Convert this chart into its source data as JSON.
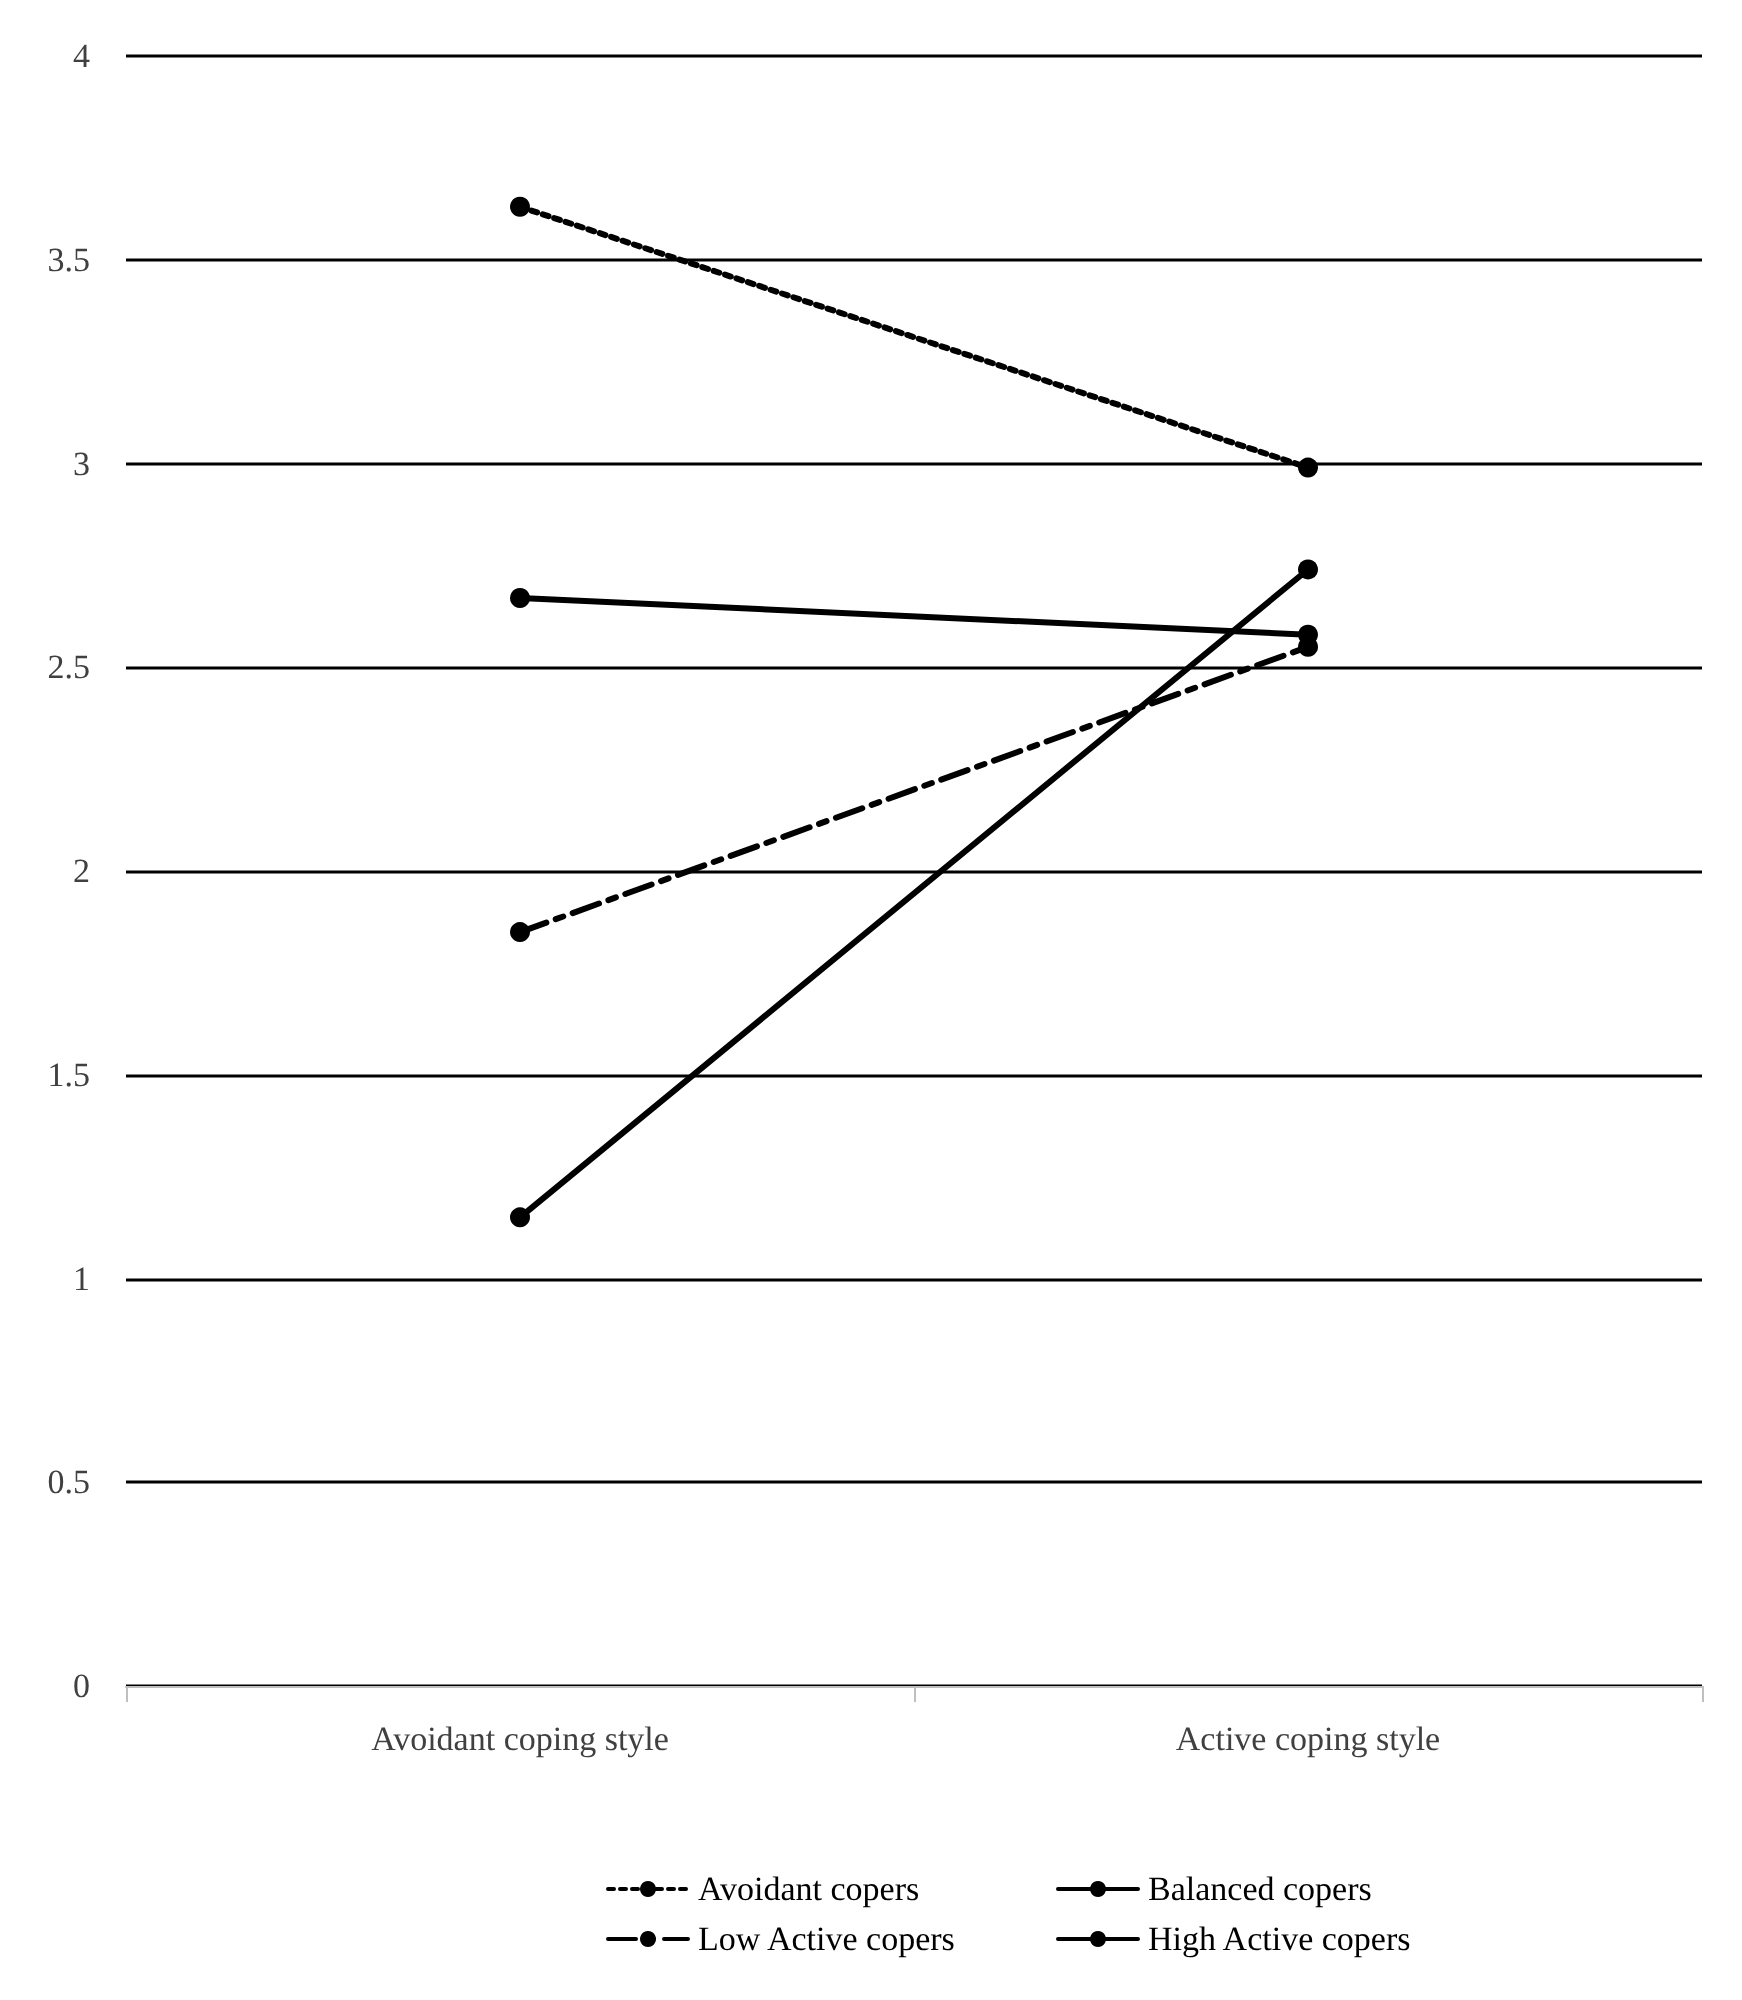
{
  "chart_data": {
    "type": "line",
    "categories": [
      "Avoidant coping style",
      "Active coping style"
    ],
    "series": [
      {
        "name": "Avoidant copers",
        "color": "#000000",
        "values": [
          3.63,
          2.99
        ],
        "line_style": "dotted"
      },
      {
        "name": "Balanced copers",
        "color": "#000000",
        "values": [
          2.67,
          2.58
        ],
        "line_style": "solid"
      },
      {
        "name": "Low Active copers",
        "color": "#000000",
        "values": [
          1.85,
          2.55
        ],
        "line_style": "dashed"
      },
      {
        "name": "High Active copers",
        "color": "#000000",
        "values": [
          1.15,
          2.74
        ],
        "line_style": "solid"
      }
    ],
    "ylim": [
      0,
      4
    ],
    "yticks": [
      0,
      0.5,
      1,
      1.5,
      2,
      2.5,
      3,
      3.5,
      4
    ],
    "grid": "y",
    "legend": "bottom",
    "marker": "circle"
  }
}
